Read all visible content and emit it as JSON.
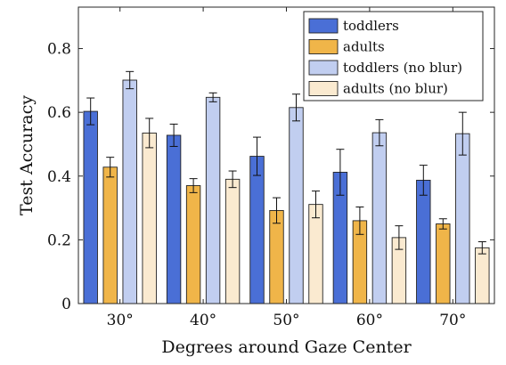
{
  "chart_data": {
    "type": "bar",
    "title": "",
    "xlabel": "Degrees around Gaze Center",
    "ylabel": "Test Accuracy",
    "ylim": [
      0,
      0.93
    ],
    "yticks": [
      0,
      0.2,
      0.4,
      0.6,
      0.8
    ],
    "ytick_labels": [
      "0",
      "0.2",
      "0.4",
      "0.6",
      "0.8"
    ],
    "categories": [
      "30°",
      "40°",
      "50°",
      "60°",
      "70°"
    ],
    "grid": false,
    "legend_position": "top-right",
    "series": [
      {
        "name": "toddlers",
        "color": "#4a6fd6",
        "values": [
          0.603,
          0.528,
          0.462,
          0.412,
          0.387
        ],
        "error": [
          0.042,
          0.035,
          0.06,
          0.072,
          0.047
        ]
      },
      {
        "name": "adults",
        "color": "#f0b549",
        "values": [
          0.428,
          0.37,
          0.292,
          0.26,
          0.25
        ],
        "error": [
          0.031,
          0.022,
          0.04,
          0.043,
          0.016
        ]
      },
      {
        "name": "toddlers (no blur)",
        "color": "#c1cef0",
        "values": [
          0.701,
          0.647,
          0.615,
          0.536,
          0.533
        ],
        "error": [
          0.027,
          0.014,
          0.042,
          0.041,
          0.067
        ]
      },
      {
        "name": "adults (no blur)",
        "color": "#faead0",
        "values": [
          0.535,
          0.39,
          0.311,
          0.207,
          0.175
        ],
        "error": [
          0.046,
          0.026,
          0.042,
          0.037,
          0.019
        ]
      }
    ]
  }
}
